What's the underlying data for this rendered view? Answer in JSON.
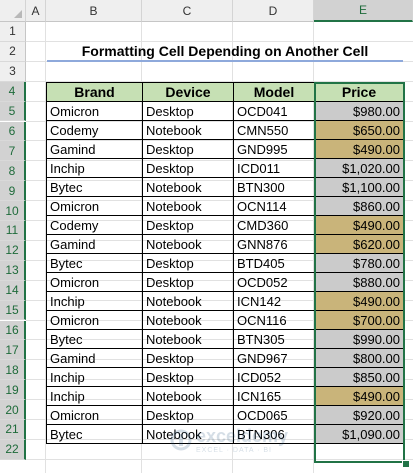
{
  "columns": [
    "A",
    "B",
    "C",
    "D",
    "E"
  ],
  "rows": [
    "1",
    "2",
    "3",
    "4",
    "5",
    "6",
    "7",
    "8",
    "9",
    "10",
    "11",
    "12",
    "13",
    "14",
    "15",
    "16",
    "17",
    "18",
    "19",
    "20",
    "21",
    "22"
  ],
  "title": "Formatting Cell Depending on Another Cell",
  "table": {
    "headers": [
      "Brand",
      "Device",
      "Model",
      "Price"
    ],
    "rows": [
      {
        "brand": "Omicron",
        "device": "Desktop",
        "model": "OCD041",
        "price": "$980.00",
        "highlight": "gray"
      },
      {
        "brand": "Codemy",
        "device": "Notebook",
        "model": "CMN550",
        "price": "$650.00",
        "highlight": "gold"
      },
      {
        "brand": "Gamind",
        "device": "Desktop",
        "model": "GND995",
        "price": "$490.00",
        "highlight": "gold"
      },
      {
        "brand": "Inchip",
        "device": "Desktop",
        "model": "ICD011",
        "price": "$1,020.00",
        "highlight": "gray"
      },
      {
        "brand": "Bytec",
        "device": "Notebook",
        "model": "BTN300",
        "price": "$1,100.00",
        "highlight": "gray"
      },
      {
        "brand": "Omicron",
        "device": "Notebook",
        "model": "OCN114",
        "price": "$860.00",
        "highlight": "gray"
      },
      {
        "brand": "Codemy",
        "device": "Desktop",
        "model": "CMD360",
        "price": "$490.00",
        "highlight": "gold"
      },
      {
        "brand": "Gamind",
        "device": "Notebook",
        "model": "GNN876",
        "price": "$620.00",
        "highlight": "gold"
      },
      {
        "brand": "Bytec",
        "device": "Desktop",
        "model": "BTD405",
        "price": "$780.00",
        "highlight": "gray"
      },
      {
        "brand": "Omicron",
        "device": "Desktop",
        "model": "OCD052",
        "price": "$880.00",
        "highlight": "gray"
      },
      {
        "brand": "Inchip",
        "device": "Notebook",
        "model": "ICN142",
        "price": "$490.00",
        "highlight": "gold"
      },
      {
        "brand": "Omicron",
        "device": "Notebook",
        "model": "OCN116",
        "price": "$700.00",
        "highlight": "gold"
      },
      {
        "brand": "Bytec",
        "device": "Notebook",
        "model": "BTN305",
        "price": "$990.00",
        "highlight": "gray"
      },
      {
        "brand": "Gamind",
        "device": "Desktop",
        "model": "GND967",
        "price": "$800.00",
        "highlight": "gray"
      },
      {
        "brand": "Inchip",
        "device": "Desktop",
        "model": "ICD052",
        "price": "$850.00",
        "highlight": "gray"
      },
      {
        "brand": "Inchip",
        "device": "Notebook",
        "model": "ICN165",
        "price": "$490.00",
        "highlight": "gold"
      },
      {
        "brand": "Omicron",
        "device": "Desktop",
        "model": "OCD065",
        "price": "$920.00",
        "highlight": "gray"
      },
      {
        "brand": "Bytec",
        "device": "Notebook",
        "model": "BTN306",
        "price": "$1,090.00",
        "highlight": "gray"
      }
    ]
  },
  "colors": {
    "header_fill": "#c6e0b4",
    "highlight_gold": "#c9b47a",
    "highlight_gray": "#cbcbcb",
    "selection": "#217346"
  },
  "selected_column": "E",
  "watermark": {
    "name": "exceldemy",
    "tagline": "EXCEL · DATA · BI"
  }
}
